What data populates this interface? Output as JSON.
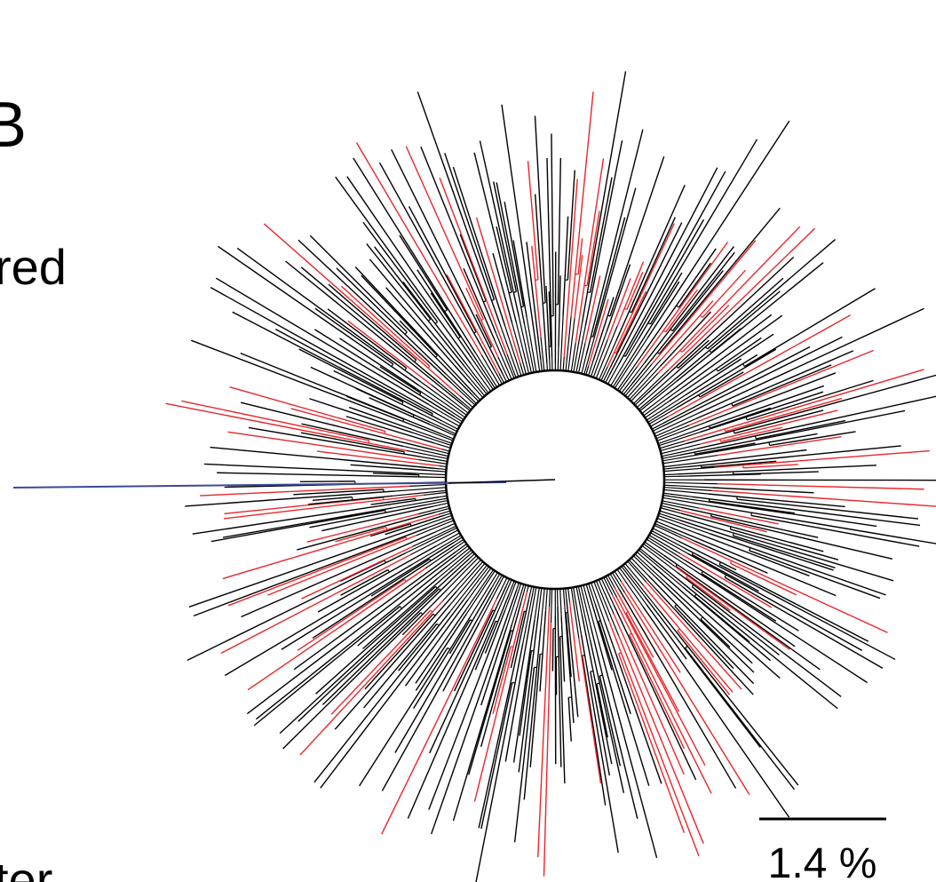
{
  "panel_label": "B",
  "side_text": [
    "red",
    "ter"
  ],
  "scale_bar": {
    "label": "1.4 %"
  }
}
